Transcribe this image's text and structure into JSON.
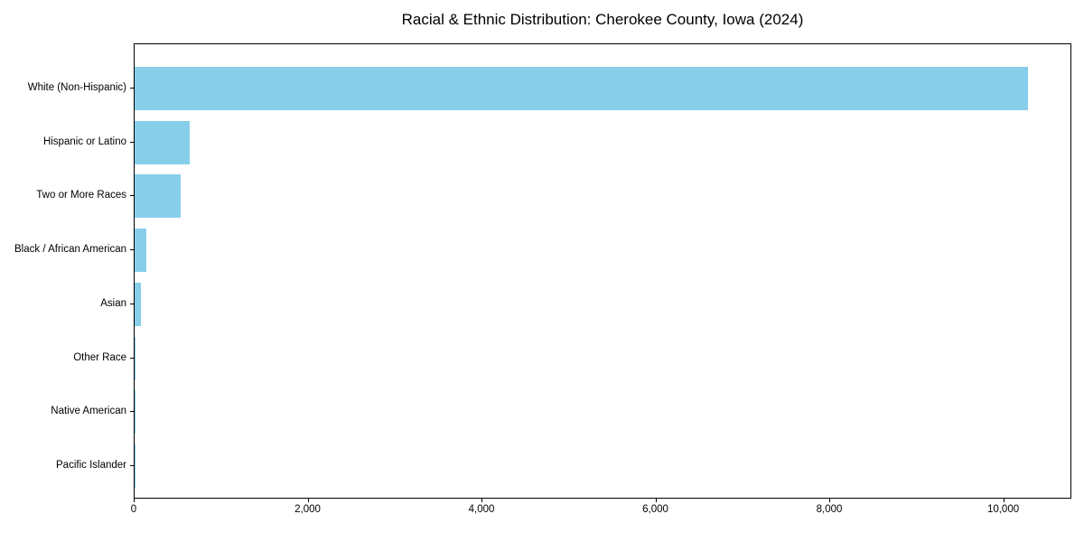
{
  "figure": {
    "background": "#ffffff",
    "text_color": "#000000",
    "axis_color": "#000000"
  },
  "chart_data": {
    "type": "bar",
    "orientation": "horizontal",
    "title": "Racial & Ethnic Distribution: Cherokee County, Iowa (2024)",
    "categories": [
      "White (Non-Hispanic)",
      "Hispanic or Latino",
      "Two or More Races",
      "Black / African American",
      "Asian",
      "Other Race",
      "Native American",
      "Pacific Islander"
    ],
    "values": [
      10270,
      630,
      535,
      135,
      73,
      15,
      8,
      3
    ],
    "bar_color": "#87CEEB",
    "xlabel": "",
    "ylabel": "",
    "xlim": [
      0,
      10784
    ],
    "xticks": [
      0,
      2000,
      4000,
      6000,
      8000,
      10000
    ],
    "xtick_labels": [
      "0",
      "2,000",
      "4,000",
      "6,000",
      "8,000",
      "10,000"
    ],
    "grid": false,
    "legend": null,
    "largest_category": "White (Non-Hispanic)",
    "smallest_category": "Pacific Islander"
  }
}
